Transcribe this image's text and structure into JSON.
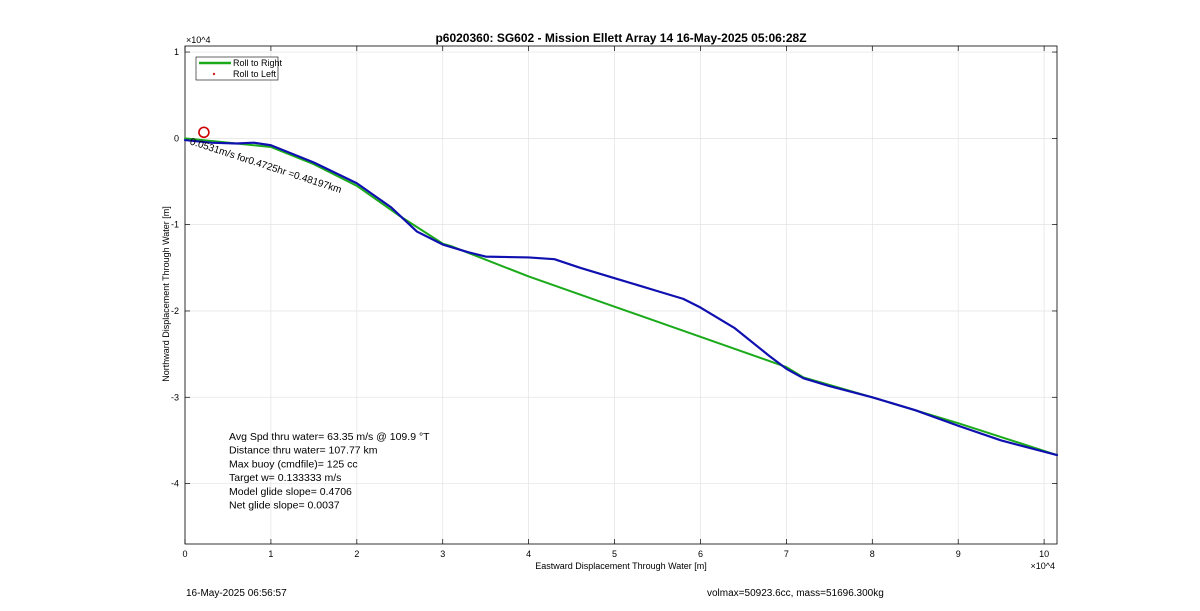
{
  "chart_data": {
    "type": "line",
    "title": "p6020360: SG602 - Mission Ellett Array 14 16-May-2025 05:06:28Z",
    "xlabel": "Eastward Displacement Through Water [m]",
    "ylabel": "Northward Displacement Through Water [m]",
    "x_exponent": "×10^4",
    "y_exponent": "×10^4",
    "x_ticks": [
      0,
      1,
      2,
      3,
      4,
      5,
      6,
      7,
      8,
      9,
      10
    ],
    "y_ticks": [
      1,
      0,
      -1,
      -2,
      -3,
      -4
    ],
    "xlim": [
      0,
      10.15
    ],
    "ylim": [
      -4.7,
      1.07
    ],
    "grid": true,
    "legend_location": "top-left",
    "series": [
      {
        "name": "Roll to Right",
        "color": "#1aaa1a",
        "x": [
          0,
          0.5,
          1.0,
          1.5,
          2.0,
          2.5,
          3.0,
          3.1,
          4,
          5,
          6,
          7,
          7.2,
          8,
          9,
          10.15
        ],
        "y": [
          0,
          -0.05,
          -0.1,
          -0.3,
          -0.55,
          -0.9,
          -1.22,
          -1.25,
          -1.6,
          -1.95,
          -2.3,
          -2.65,
          -2.77,
          -3.0,
          -3.3,
          -3.67
        ]
      },
      {
        "name": "Roll to Left",
        "color": "#cc2222",
        "x": [],
        "y": []
      },
      {
        "name": "",
        "color": "#1010b0",
        "x": [
          0,
          0.3,
          0.6,
          0.8,
          1.0,
          1.5,
          2.0,
          2.4,
          2.7,
          3.0,
          3.3,
          3.5,
          4.0,
          4.3,
          4.6,
          5.0,
          5.5,
          5.8,
          6.0,
          6.4,
          6.8,
          7.0,
          7.2,
          7.5,
          8.0,
          8.5,
          9.0,
          9.5,
          10.15
        ],
        "y": [
          -0.02,
          -0.05,
          -0.06,
          -0.05,
          -0.08,
          -0.28,
          -0.52,
          -0.8,
          -1.08,
          -1.23,
          -1.32,
          -1.37,
          -1.38,
          -1.4,
          -1.5,
          -1.62,
          -1.77,
          -1.86,
          -1.96,
          -2.2,
          -2.52,
          -2.67,
          -2.78,
          -2.87,
          -3.0,
          -3.15,
          -3.33,
          -3.5,
          -3.67
        ]
      }
    ],
    "start_marker": {
      "x": 0.22,
      "y": 0.07,
      "color": "#cc0000"
    },
    "annotation": "0.0531m/s for0.4725hr =0.48197km",
    "annotation_point": {
      "x": 0.05,
      "y": -0.02
    },
    "stats": [
      "Avg Spd thru water= 63.35 m/s @ 109.9 °T",
      "Distance thru water= 107.77 km",
      "Max buoy (cmdfile)= 125 cc",
      "Target w= 0.133333 m/s",
      "Model glide slope= 0.4706",
      "Net glide slope= 0.0037"
    ]
  },
  "footer": {
    "left": "16-May-2025 06:56:57",
    "right": "volmax=50923.6cc, mass=51696.300kg"
  }
}
